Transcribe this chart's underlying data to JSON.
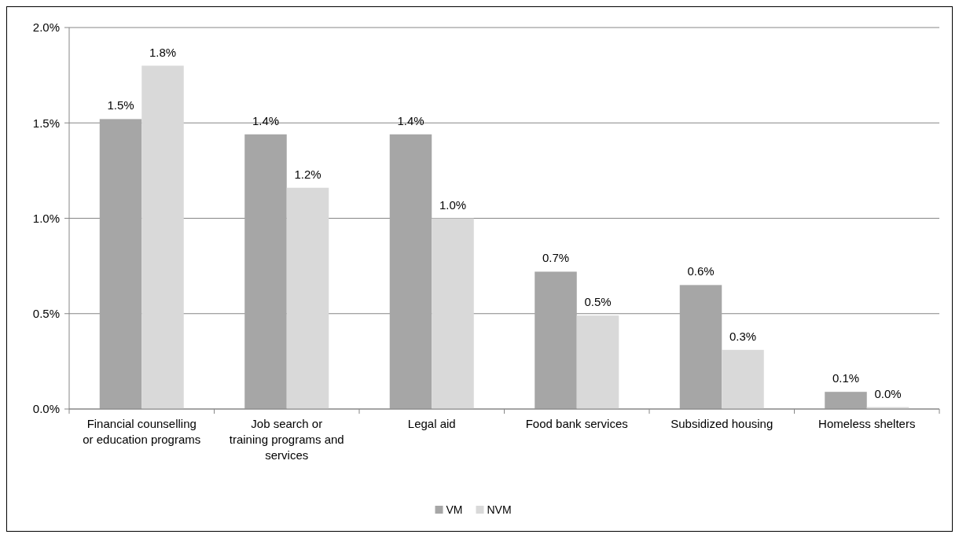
{
  "chart_data": {
    "type": "bar",
    "categories": [
      "Financial counselling or education programs",
      "Job search or training programs and services",
      "Legal aid",
      "Food bank services",
      "Subsidized housing",
      "Homeless shelters"
    ],
    "series": [
      {
        "name": "VM",
        "color": "#a6a6a6",
        "values": [
          1.52,
          1.44,
          1.44,
          0.72,
          0.65,
          0.09
        ],
        "value_labels": [
          "1.5%",
          "1.4%",
          "1.4%",
          "0.7%",
          "0.6%",
          "0.1%"
        ]
      },
      {
        "name": "NVM",
        "color": "#d9d9d9",
        "values": [
          1.8,
          1.16,
          1.0,
          0.49,
          0.31,
          0.01
        ],
        "value_labels": [
          "1.8%",
          "1.2%",
          "1.0%",
          "0.5%",
          "0.3%",
          "0.0%"
        ]
      }
    ],
    "ylim": [
      0,
      2
    ],
    "yticks": [
      {
        "value": 0,
        "label": "0.0%"
      },
      {
        "value": 0.5,
        "label": "0.5%"
      },
      {
        "value": 1,
        "label": "1.0%"
      },
      {
        "value": 1.5,
        "label": "1.5%"
      },
      {
        "value": 2,
        "label": "2.0%"
      }
    ],
    "grid": "y",
    "legend": "bottom"
  }
}
